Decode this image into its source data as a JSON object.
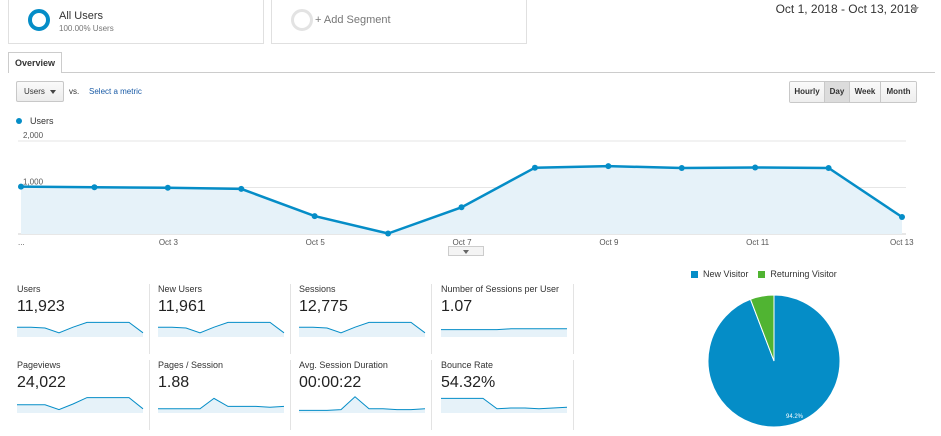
{
  "segments": {
    "all_users": {
      "title": "All Users",
      "subtitle": "100.00% Users"
    },
    "add_segment": "+ Add Segment"
  },
  "date_range": "Oct 1, 2018 - Oct 13, 2018",
  "tabs": {
    "overview": "Overview"
  },
  "controls": {
    "metric": "Users",
    "vs": "vs.",
    "select_metric": "Select a metric",
    "granularity": [
      "Hourly",
      "Day",
      "Week",
      "Month"
    ],
    "granularity_active": "Day"
  },
  "colors": {
    "primary": "#058dc7",
    "area_fill": "#e6f2f9",
    "returning": "#50b432",
    "link": "#1a5ba6"
  },
  "chart_data": {
    "type": "area",
    "series_name": "Users",
    "x": [
      "Oct 1",
      "Oct 2",
      "Oct 3",
      "Oct 4",
      "Oct 5",
      "Oct 6",
      "Oct 7",
      "Oct 8",
      "Oct 9",
      "Oct 10",
      "Oct 11",
      "Oct 12",
      "Oct 13"
    ],
    "values": [
      1020,
      1005,
      995,
      970,
      385,
      10,
      575,
      1425,
      1460,
      1420,
      1430,
      1420,
      365
    ],
    "y_ticks": [
      "2,000",
      "1,000"
    ],
    "x_tick_labels": [
      "...",
      "Oct 3",
      "Oct 5",
      "Oct 7",
      "Oct 9",
      "Oct 11",
      "Oct 13"
    ],
    "ylim": [
      0,
      2000
    ],
    "grid": true
  },
  "tiles": [
    {
      "label": "Users",
      "value": "11,923",
      "spark": [
        0.55,
        0.55,
        0.5,
        0.2,
        0.55,
        0.85,
        0.85,
        0.85,
        0.85,
        0.2
      ]
    },
    {
      "label": "New Users",
      "value": "11,961",
      "spark": [
        0.55,
        0.55,
        0.5,
        0.2,
        0.55,
        0.85,
        0.85,
        0.85,
        0.85,
        0.2
      ]
    },
    {
      "label": "Sessions",
      "value": "12,775",
      "spark": [
        0.55,
        0.55,
        0.5,
        0.2,
        0.55,
        0.85,
        0.85,
        0.85,
        0.85,
        0.2
      ]
    },
    {
      "label": "Number of Sessions per User",
      "value": "1.07",
      "spark": [
        0.4,
        0.4,
        0.4,
        0.4,
        0.4,
        0.45,
        0.45,
        0.45,
        0.45,
        0.45
      ]
    },
    {
      "label": "Pageviews",
      "value": "24,022",
      "spark": [
        0.45,
        0.45,
        0.45,
        0.15,
        0.5,
        0.9,
        0.9,
        0.9,
        0.9,
        0.2
      ]
    },
    {
      "label": "Pages / Session",
      "value": "1.88",
      "spark": [
        0.2,
        0.2,
        0.2,
        0.2,
        0.85,
        0.35,
        0.35,
        0.35,
        0.3,
        0.35
      ]
    },
    {
      "label": "Avg. Session Duration",
      "value": "00:00:22",
      "spark": [
        0.1,
        0.1,
        0.1,
        0.15,
        0.95,
        0.2,
        0.2,
        0.15,
        0.15,
        0.2
      ]
    },
    {
      "label": "Bounce Rate",
      "value": "54.32%",
      "spark": [
        0.85,
        0.85,
        0.85,
        0.85,
        0.2,
        0.25,
        0.25,
        0.2,
        0.25,
        0.3
      ]
    }
  ],
  "pie": {
    "legend": [
      "New Visitor",
      "Returning Visitor"
    ],
    "new_visitor_pct": 94.2,
    "label": "94.2%"
  }
}
